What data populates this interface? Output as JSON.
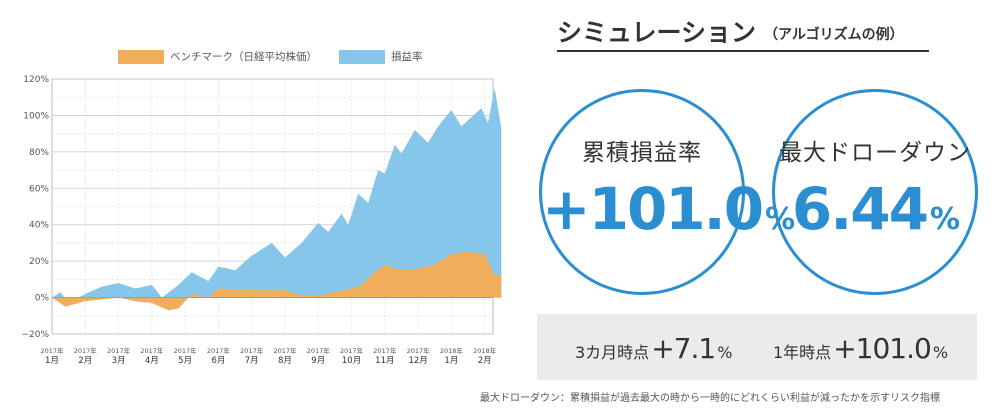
{
  "legend": [
    {
      "label": "ベンチマーク（日経平均株価）",
      "color": "#f0ad5a"
    },
    {
      "label": "損益率",
      "color": "#85c6ea"
    }
  ],
  "chart_data": {
    "type": "area",
    "ylim": [
      -20,
      120
    ],
    "y_ticks": [
      -20,
      0,
      20,
      40,
      60,
      80,
      100,
      120
    ],
    "y_tick_labels": [
      "−20%",
      "0%",
      "20%",
      "40%",
      "60%",
      "80%",
      "100%",
      "120%"
    ],
    "x_tick_labels": [
      {
        "year": "2017年",
        "month": "1月"
      },
      {
        "year": "2017年",
        "month": "2月"
      },
      {
        "year": "2017年",
        "month": "3月"
      },
      {
        "year": "2017年",
        "month": "4月"
      },
      {
        "year": "2017年",
        "month": "5月"
      },
      {
        "year": "2017年",
        "month": "6月"
      },
      {
        "year": "2017年",
        "month": "7月"
      },
      {
        "year": "2017年",
        "month": "8月"
      },
      {
        "year": "2017年",
        "month": "9月"
      },
      {
        "year": "2017年",
        "month": "10月"
      },
      {
        "year": "2017年",
        "month": "11月"
      },
      {
        "year": "2017年",
        "month": "12月"
      },
      {
        "year": "2018年",
        "month": "1月"
      },
      {
        "year": "2018年",
        "month": "2月"
      }
    ],
    "x_range": [
      0,
      13
    ],
    "grid": true,
    "series": [
      {
        "name": "損益率",
        "color": "#85c6ea",
        "points": [
          [
            0,
            0
          ],
          [
            0.25,
            3
          ],
          [
            0.5,
            -3
          ],
          [
            1,
            2
          ],
          [
            1.5,
            6
          ],
          [
            2,
            8
          ],
          [
            2.5,
            5
          ],
          [
            3,
            7
          ],
          [
            3.3,
            0
          ],
          [
            3.8,
            7
          ],
          [
            4.2,
            14
          ],
          [
            4.7,
            9
          ],
          [
            5,
            17
          ],
          [
            5.5,
            15
          ],
          [
            6,
            23
          ],
          [
            6.6,
            30
          ],
          [
            7,
            22
          ],
          [
            7.5,
            30
          ],
          [
            8,
            41
          ],
          [
            8.3,
            36
          ],
          [
            8.7,
            46
          ],
          [
            8.9,
            40
          ],
          [
            9.2,
            57
          ],
          [
            9.5,
            52
          ],
          [
            9.8,
            70
          ],
          [
            10,
            68
          ],
          [
            10.3,
            84
          ],
          [
            10.5,
            79
          ],
          [
            10.9,
            92
          ],
          [
            11.3,
            85
          ],
          [
            11.6,
            94
          ],
          [
            12,
            103
          ],
          [
            12.3,
            94
          ],
          [
            12.6,
            99
          ],
          [
            12.9,
            104
          ],
          [
            13.1,
            96
          ],
          [
            13.3,
            115
          ],
          [
            13.5,
            93
          ]
        ]
      },
      {
        "name": "ベンチマーク（日経平均株価）",
        "color": "#f0ad5a",
        "points": [
          [
            0,
            0
          ],
          [
            0.4,
            -5
          ],
          [
            1,
            -2
          ],
          [
            1.5,
            -1
          ],
          [
            2,
            0
          ],
          [
            2.5,
            -2
          ],
          [
            3,
            -3
          ],
          [
            3.5,
            -7
          ],
          [
            3.8,
            -6
          ],
          [
            4.2,
            2
          ],
          [
            4.7,
            0
          ],
          [
            5,
            5
          ],
          [
            6,
            4
          ],
          [
            6.5,
            4
          ],
          [
            7,
            4
          ],
          [
            7.5,
            1
          ],
          [
            8,
            1
          ],
          [
            8.5,
            3
          ],
          [
            9,
            5
          ],
          [
            9.3,
            7
          ],
          [
            9.7,
            14
          ],
          [
            10,
            18
          ],
          [
            10.5,
            15
          ],
          [
            11,
            16
          ],
          [
            11.5,
            18
          ],
          [
            12,
            24
          ],
          [
            12.5,
            25
          ],
          [
            13,
            24
          ],
          [
            13.3,
            12
          ],
          [
            13.5,
            13
          ]
        ]
      }
    ]
  },
  "simulation": {
    "title": "シミュレーション",
    "subtitle": "（アルゴリズムの例）",
    "cumulative": {
      "label": "累積損益率",
      "value": "+101.0",
      "unit": "%"
    },
    "drawdown": {
      "label": "最大ドローダウン",
      "value": "6.44",
      "unit": "%"
    },
    "three_month": {
      "label": "3カ月時点",
      "value": "+7.1",
      "unit": "%"
    },
    "one_year": {
      "label": "1年時点",
      "value": "+101.0",
      "unit": "%"
    }
  },
  "footnote": "最大ドローダウン：累積損益が過去最大の時から一時的にどれくらい利益が減ったかを示すリスク指標"
}
